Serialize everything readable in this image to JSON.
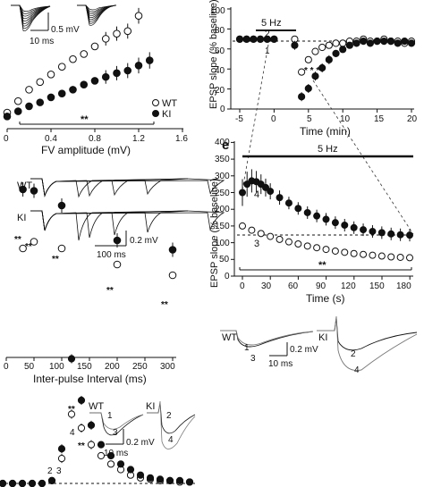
{
  "panel_a": {
    "scale_text": "0.5 mV",
    "time_scale": "10 ms",
    "x_label": "FV amplitude (mV)",
    "x_ticks": [
      "0",
      "0.4",
      "0.8",
      "1.2",
      "1.6"
    ],
    "legend": [
      {
        "label": "WT",
        "symbol": "open-circle"
      },
      {
        "label": "KI",
        "symbol": "filled-circle"
      }
    ],
    "significance": "**"
  },
  "panel_b": {
    "trace_labels": [
      "WT",
      "KI"
    ],
    "amp_scale": "0.2 mV",
    "time_scale": "100 ms",
    "x_label": "Inter-pulse Interval (ms)",
    "x_ticks": [
      "0",
      "50",
      "100",
      "150",
      "200",
      "250",
      "300"
    ],
    "stars": [
      "**",
      "**",
      "**",
      "**",
      "**"
    ]
  },
  "panel_d": {
    "y_label": "EPSP slope (% baseline)",
    "x_label": "Time (min)",
    "x_ticks": [
      "-5",
      "0",
      "5",
      "10",
      "15",
      "20"
    ],
    "y_ticks": [
      "0",
      "20",
      "40",
      "60",
      "80",
      "100"
    ],
    "stim_label": "5 Hz",
    "point_labels": [
      "1",
      "2"
    ],
    "stars": "* * * *"
  },
  "panel_e": {
    "letter": "e",
    "y_label": "EPSP slope (% baseline)",
    "x_label": "Time (s)",
    "x_ticks": [
      "0",
      "30",
      "60",
      "90",
      "120",
      "150",
      "180"
    ],
    "y_ticks": [
      "0",
      "50",
      "100",
      "150",
      "200",
      "250",
      "300",
      "350",
      "400"
    ],
    "stim_label": "5 Hz",
    "point_labels": [
      "3",
      "4"
    ],
    "significance": "**"
  },
  "panel_e_traces": {
    "wt_label": "WT",
    "ki_label": "KI",
    "wt_numbers": [
      "1",
      "3"
    ],
    "ki_numbers": [
      "2",
      "4"
    ],
    "amp_scale": "0.2 mV",
    "time_scale": "10 ms"
  },
  "panel_c": {
    "wt_label": "WT",
    "ki_label": "KI",
    "amp_scale": "0.2 mV",
    "time_scale": "10 ms",
    "numbers": [
      "1",
      "3",
      "2",
      "4"
    ],
    "point_labels": [
      "2",
      "3",
      "4"
    ],
    "stars": [
      "**",
      "**",
      "*"
    ]
  },
  "chart_data": [
    {
      "type": "scatter",
      "title": "",
      "xlabel": "FV amplitude (mV)",
      "ylabel": "",
      "xlim": [
        0,
        1.6
      ],
      "series": [
        {
          "name": "WT",
          "x": [
            0.0,
            0.1,
            0.2,
            0.3,
            0.4,
            0.5,
            0.6,
            0.7,
            0.8,
            0.9,
            1.0,
            1.1,
            1.2
          ],
          "y": [
            0.35,
            0.8,
            1.25,
            1.55,
            1.85,
            2.15,
            2.45,
            2.65,
            2.95,
            3.25,
            3.45,
            3.55,
            4.15
          ]
        },
        {
          "name": "KI",
          "x": [
            0.0,
            0.1,
            0.2,
            0.3,
            0.4,
            0.5,
            0.6,
            0.7,
            0.8,
            0.9,
            1.0,
            1.1,
            1.2,
            1.3
          ],
          "y": [
            0.2,
            0.4,
            0.6,
            0.75,
            0.95,
            1.1,
            1.25,
            1.45,
            1.6,
            1.75,
            1.9,
            2.0,
            2.2,
            2.4
          ]
        }
      ]
    },
    {
      "type": "scatter",
      "title": "",
      "xlabel": "Inter-pulse Interval (ms)",
      "ylabel": "",
      "xlim": [
        0,
        300
      ],
      "series": [
        {
          "name": "WT",
          "x": [
            30,
            50,
            100,
            200,
            300
          ],
          "y": [
            1.28,
            1.33,
            1.28,
            1.16,
            1.08
          ]
        },
        {
          "name": "KI",
          "x": [
            30,
            50,
            100,
            200,
            300
          ],
          "y": [
            1.72,
            1.71,
            1.6,
            1.34,
            1.27
          ]
        }
      ]
    },
    {
      "type": "scatter",
      "title": "",
      "xlabel": "Time (min)",
      "ylabel": "EPSP slope (% baseline)",
      "xlim": [
        -5,
        20
      ],
      "ylim": [
        0,
        100
      ],
      "series": [
        {
          "name": "WT",
          "x": [
            -5,
            -4,
            -3,
            -2,
            -1,
            0,
            3,
            4,
            5,
            6,
            7,
            8,
            9,
            10,
            11,
            12,
            13,
            14,
            15,
            16,
            17,
            18,
            19,
            20
          ],
          "y": [
            100,
            100,
            100,
            100,
            100,
            100,
            100,
            84,
            90,
            94,
            96,
            97,
            98,
            98,
            99,
            99,
            100,
            99,
            99,
            100,
            99,
            99,
            98,
            99
          ]
        },
        {
          "name": "KI",
          "x": [
            -5,
            -4,
            -3,
            -2,
            -1,
            0,
            3,
            4,
            5,
            6,
            7,
            8,
            9,
            10,
            11,
            12,
            13,
            14,
            15,
            16,
            17,
            18,
            19,
            20
          ],
          "y": [
            100,
            100,
            100,
            100,
            100,
            100,
            97,
            72,
            76,
            82,
            86,
            90,
            93,
            95,
            97,
            98,
            99,
            98,
            99,
            99,
            99,
            98,
            99,
            98
          ]
        }
      ]
    },
    {
      "type": "line",
      "title": "",
      "xlabel": "Time (s)",
      "ylabel": "EPSP slope (% baseline)",
      "xlim": [
        0,
        180
      ],
      "ylim": [
        0,
        400
      ],
      "series": [
        {
          "name": "WT",
          "x": [
            0,
            10,
            20,
            30,
            40,
            50,
            60,
            70,
            80,
            90,
            100,
            110,
            120,
            130,
            140,
            150,
            160,
            170,
            180
          ],
          "y": [
            120,
            110,
            102,
            95,
            88,
            82,
            77,
            72,
            68,
            64,
            60,
            57,
            54,
            52,
            50,
            48,
            46,
            45,
            44
          ]
        },
        {
          "name": "KI",
          "x": [
            0,
            5,
            10,
            15,
            20,
            25,
            30,
            40,
            50,
            60,
            70,
            80,
            90,
            100,
            110,
            120,
            130,
            140,
            150,
            160,
            170,
            180
          ],
          "y": [
            200,
            220,
            228,
            226,
            220,
            212,
            203,
            188,
            175,
            162,
            152,
            144,
            136,
            128,
            122,
            116,
            111,
            107,
            104,
            101,
            99,
            98
          ]
        }
      ]
    },
    {
      "type": "scatter",
      "title": "",
      "xlabel": "",
      "ylabel": "",
      "series": [
        {
          "name": "WT",
          "x": [
            1,
            2,
            3,
            4,
            5,
            6,
            7,
            8,
            9,
            10,
            11,
            12,
            13,
            14,
            15,
            16,
            17,
            18,
            19,
            20
          ],
          "y": [
            100,
            100,
            100,
            100,
            100,
            102,
            118,
            150,
            140,
            128,
            120,
            114,
            110,
            106,
            104,
            103,
            102,
            102,
            101,
            101
          ]
        },
        {
          "name": "KI",
          "x": [
            1,
            2,
            3,
            4,
            5,
            6,
            7,
            8,
            9,
            10,
            11,
            12,
            13,
            14,
            15,
            16,
            17,
            18,
            19,
            20
          ],
          "y": [
            100,
            100,
            100,
            100,
            100,
            102,
            125,
            190,
            160,
            142,
            128,
            120,
            114,
            110,
            106,
            104,
            103,
            102,
            102,
            101
          ]
        }
      ]
    }
  ]
}
